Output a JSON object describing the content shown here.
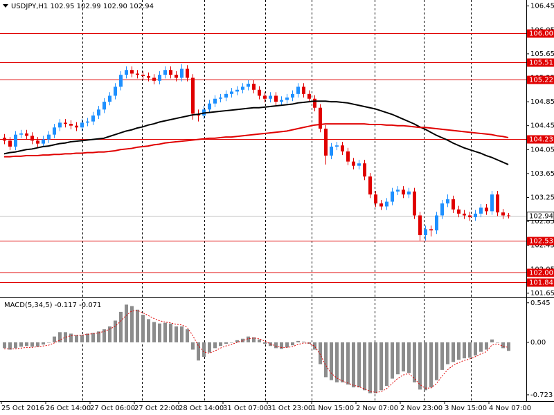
{
  "chart_data": {
    "type": "candlestick",
    "title": "USDJPY,H1  102.95 102.99 102.90 102.94",
    "categories": [
      "25 Oct 2016",
      null,
      null,
      null,
      null,
      null,
      null,
      null,
      "26 Oct 14:00",
      null,
      null,
      null,
      null,
      null,
      null,
      null,
      "27 Oct 06:00",
      null,
      null,
      null,
      null,
      null,
      null,
      null,
      "27 Oct 22:00",
      null,
      null,
      null,
      null,
      null,
      null,
      null,
      "28 Oct 14:00",
      null,
      null,
      null,
      null,
      null,
      null,
      null,
      "31 Oct 07:00",
      null,
      null,
      null,
      null,
      null,
      null,
      null,
      "31 Oct 23:00",
      null,
      null,
      null,
      null,
      null,
      null,
      null,
      "1 Nov 15:00",
      null,
      null,
      null,
      null,
      null,
      null,
      null,
      "2 Nov 07:00",
      null,
      null,
      null,
      null,
      null,
      null,
      null,
      "2 Nov 23:00",
      null,
      null,
      null,
      null,
      null,
      null,
      null,
      "3 Nov 15:00",
      null,
      null,
      null,
      null,
      null,
      null,
      null,
      "4 Nov 07:00",
      null,
      null,
      null
    ],
    "open": [
      104.25,
      104.2,
      104.1,
      104.3,
      104.32,
      104.28,
      104.2,
      104.15,
      104.22,
      104.3,
      104.42,
      104.5,
      104.48,
      104.45,
      104.42,
      104.5,
      104.52,
      104.62,
      104.72,
      104.85,
      104.95,
      105.1,
      105.3,
      105.38,
      105.32,
      105.3,
      105.28,
      105.25,
      105.2,
      105.3,
      105.38,
      105.3,
      105.25,
      105.4,
      105.25,
      104.65,
      104.62,
      104.72,
      104.82,
      104.9,
      104.92,
      104.98,
      105.02,
      105.05,
      105.1,
      105.15,
      105.05,
      104.95,
      104.9,
      104.95,
      104.85,
      104.88,
      104.92,
      104.98,
      105.1,
      104.98,
      104.9,
      104.75,
      104.4,
      103.95,
      104.1,
      104.12,
      104.02,
      103.85,
      103.78,
      103.82,
      103.6,
      103.3,
      103.15,
      103.1,
      103.18,
      103.35,
      103.38,
      103.3,
      103.35,
      102.95,
      102.62,
      102.72,
      102.7,
      102.95,
      103.15,
      103.22,
      103.05,
      102.98,
      102.95,
      102.92,
      102.98,
      103.08,
      103.02,
      103.3,
      103.0,
      102.95
    ],
    "high": [
      104.31,
      104.26,
      104.36,
      104.38,
      104.38,
      104.34,
      104.26,
      104.28,
      104.36,
      104.48,
      104.56,
      104.56,
      104.54,
      104.51,
      104.56,
      104.58,
      104.68,
      104.78,
      104.91,
      105.01,
      105.16,
      105.36,
      105.44,
      105.44,
      105.38,
      105.36,
      105.34,
      105.31,
      105.36,
      105.44,
      105.44,
      105.36,
      105.48,
      105.46,
      105.31,
      104.72,
      104.78,
      104.88,
      104.96,
      104.98,
      105.04,
      105.08,
      105.11,
      105.16,
      105.21,
      105.21,
      105.11,
      105.01,
      105.01,
      105.01,
      104.94,
      104.98,
      105.04,
      105.16,
      105.16,
      105.04,
      104.96,
      104.81,
      104.46,
      104.16,
      104.18,
      104.18,
      104.08,
      103.91,
      103.88,
      103.88,
      103.66,
      103.36,
      103.21,
      103.24,
      103.41,
      103.44,
      103.44,
      103.41,
      103.41,
      103.01,
      102.78,
      102.78,
      103.01,
      103.21,
      103.3,
      103.28,
      103.11,
      103.04,
      103.01,
      103.04,
      103.14,
      103.14,
      103.36,
      103.36,
      103.06,
      102.99
    ],
    "low": [
      104.14,
      104.04,
      104.04,
      104.24,
      104.22,
      104.14,
      104.09,
      104.09,
      104.16,
      104.24,
      104.36,
      104.42,
      104.39,
      104.36,
      104.36,
      104.44,
      104.46,
      104.56,
      104.66,
      104.79,
      104.89,
      105.04,
      105.24,
      105.26,
      105.24,
      105.22,
      105.19,
      105.14,
      105.14,
      105.24,
      105.24,
      105.19,
      105.19,
      105.19,
      104.55,
      104.52,
      104.56,
      104.66,
      104.76,
      104.84,
      104.86,
      104.92,
      104.96,
      104.99,
      105.04,
      104.99,
      104.89,
      104.84,
      104.84,
      104.79,
      104.79,
      104.82,
      104.86,
      104.92,
      104.92,
      104.84,
      104.69,
      104.34,
      103.8,
      103.89,
      104.04,
      103.96,
      103.79,
      103.72,
      103.72,
      103.54,
      103.24,
      103.09,
      103.04,
      103.04,
      103.12,
      103.29,
      103.24,
      103.24,
      102.89,
      102.53,
      102.53,
      102.6,
      102.64,
      102.89,
      103.09,
      102.99,
      102.92,
      102.89,
      102.86,
      102.86,
      102.92,
      102.96,
      102.96,
      102.94,
      102.89,
      102.9
    ],
    "close": [
      104.2,
      104.1,
      104.3,
      104.32,
      104.28,
      104.2,
      104.15,
      104.22,
      104.3,
      104.42,
      104.5,
      104.48,
      104.45,
      104.42,
      104.5,
      104.52,
      104.62,
      104.72,
      104.85,
      104.95,
      105.1,
      105.3,
      105.38,
      105.32,
      105.3,
      105.28,
      105.25,
      105.2,
      105.3,
      105.38,
      105.3,
      105.25,
      105.4,
      105.25,
      104.65,
      104.62,
      104.72,
      104.82,
      104.9,
      104.92,
      104.98,
      105.02,
      105.05,
      105.1,
      105.15,
      105.05,
      104.95,
      104.9,
      104.95,
      104.85,
      104.88,
      104.92,
      104.98,
      105.1,
      104.98,
      104.9,
      104.75,
      104.4,
      103.95,
      104.1,
      104.12,
      104.02,
      103.85,
      103.78,
      103.82,
      103.6,
      103.3,
      103.15,
      103.1,
      103.18,
      103.35,
      103.38,
      103.3,
      103.35,
      102.95,
      102.62,
      102.72,
      102.7,
      102.95,
      103.15,
      103.22,
      103.05,
      102.98,
      102.95,
      102.92,
      102.98,
      103.08,
      103.02,
      103.3,
      103.0,
      102.95,
      102.94
    ],
    "colors": {
      "up": "#1e90ff",
      "down": "#e00000"
    },
    "moving_averages": [
      {
        "color": "#000000",
        "values": [
          103.98,
          104.0,
          104.01,
          104.03,
          104.05,
          104.06,
          104.08,
          104.1,
          104.11,
          104.13,
          104.15,
          104.16,
          104.18,
          104.19,
          104.2,
          104.21,
          104.22,
          104.23,
          104.24,
          104.27,
          104.3,
          104.33,
          104.36,
          104.38,
          104.41,
          104.43,
          104.46,
          104.48,
          104.51,
          104.53,
          104.55,
          104.57,
          104.59,
          104.61,
          104.63,
          104.64,
          104.66,
          104.67,
          104.68,
          104.69,
          104.7,
          104.71,
          104.72,
          104.73,
          104.74,
          104.75,
          104.75,
          104.76,
          104.77,
          104.78,
          104.79,
          104.8,
          104.81,
          104.83,
          104.84,
          104.85,
          104.86,
          104.86,
          104.86,
          104.85,
          104.85,
          104.84,
          104.83,
          104.81,
          104.79,
          104.77,
          104.75,
          104.73,
          104.7,
          104.67,
          104.64,
          104.6,
          104.56,
          104.52,
          104.48,
          104.43,
          104.39,
          104.34,
          104.29,
          104.25,
          104.21,
          104.16,
          104.12,
          104.08,
          104.05,
          104.02,
          103.99,
          103.95,
          103.92,
          103.88,
          103.84,
          103.8
        ]
      },
      {
        "color": "#e00000",
        "values": [
          103.93,
          103.93,
          103.94,
          103.94,
          103.95,
          103.95,
          103.95,
          103.96,
          103.96,
          103.97,
          103.97,
          103.98,
          103.98,
          103.99,
          103.99,
          104.0,
          104.0,
          104.01,
          104.01,
          104.02,
          104.03,
          104.05,
          104.06,
          104.07,
          104.09,
          104.1,
          104.11,
          104.13,
          104.14,
          104.16,
          104.17,
          104.18,
          104.19,
          104.2,
          104.21,
          104.22,
          104.23,
          104.24,
          104.24,
          104.25,
          104.26,
          104.26,
          104.27,
          104.28,
          104.29,
          104.3,
          104.31,
          104.32,
          104.33,
          104.34,
          104.35,
          104.36,
          104.38,
          104.4,
          104.42,
          104.44,
          104.46,
          104.47,
          104.48,
          104.48,
          104.48,
          104.48,
          104.48,
          104.48,
          104.48,
          104.48,
          104.47,
          104.47,
          104.47,
          104.46,
          104.46,
          104.45,
          104.45,
          104.44,
          104.43,
          104.42,
          104.42,
          104.41,
          104.4,
          104.39,
          104.38,
          104.37,
          104.36,
          104.35,
          104.34,
          104.33,
          104.32,
          104.31,
          104.3,
          104.28,
          104.27,
          104.25
        ]
      }
    ],
    "levels": [
      {
        "value": 106,
        "label": "106.00"
      },
      105.51,
      105.22,
      104.23,
      102.53,
      {
        "value": 102,
        "label": "102.00"
      },
      101.84
    ],
    "level_color": "#e00000",
    "last_price": 102.94,
    "ylim": [
      101.58,
      106.55
    ],
    "yticks": [
      106.45,
      106.05,
      105.65,
      105.25,
      104.85,
      104.45,
      104.05,
      103.65,
      103.25,
      102.85,
      102.45,
      102.05,
      101.65
    ],
    "indicator": {
      "type": "bar",
      "title": "MACD(5,34,5) -0.117 -0.071",
      "color": "#8c8c8c",
      "values": [
        -0.08,
        -0.1,
        -0.08,
        -0.06,
        -0.05,
        -0.06,
        -0.06,
        -0.03,
        0.0,
        0.08,
        0.14,
        0.14,
        0.12,
        0.1,
        0.1,
        0.12,
        0.13,
        0.15,
        0.18,
        0.22,
        0.3,
        0.42,
        0.52,
        0.5,
        0.45,
        0.38,
        0.32,
        0.28,
        0.26,
        0.27,
        0.26,
        0.22,
        0.22,
        0.18,
        -0.1,
        -0.25,
        -0.2,
        -0.14,
        -0.08,
        -0.05,
        -0.02,
        0.0,
        0.03,
        0.05,
        0.08,
        0.07,
        0.04,
        -0.02,
        -0.05,
        -0.08,
        -0.09,
        -0.07,
        -0.04,
        0.02,
        0.01,
        -0.02,
        -0.1,
        -0.3,
        -0.48,
        -0.52,
        -0.55,
        -0.55,
        -0.58,
        -0.62,
        -0.62,
        -0.66,
        -0.7,
        -0.7,
        -0.66,
        -0.6,
        -0.5,
        -0.44,
        -0.4,
        -0.42,
        -0.55,
        -0.65,
        -0.66,
        -0.62,
        -0.52,
        -0.38,
        -0.3,
        -0.27,
        -0.24,
        -0.22,
        -0.21,
        -0.18,
        -0.13,
        -0.1,
        0.04,
        0.0,
        -0.08,
        -0.117
      ],
      "signal": {
        "color": "#e00000",
        "values": [
          -0.09,
          -0.09,
          -0.09,
          -0.08,
          -0.07,
          -0.07,
          -0.06,
          -0.05,
          -0.04,
          -0.01,
          0.03,
          0.07,
          0.09,
          0.1,
          0.1,
          0.11,
          0.12,
          0.13,
          0.15,
          0.18,
          0.22,
          0.29,
          0.37,
          0.43,
          0.44,
          0.41,
          0.37,
          0.33,
          0.3,
          0.28,
          0.27,
          0.25,
          0.24,
          0.21,
          0.1,
          -0.04,
          -0.13,
          -0.15,
          -0.12,
          -0.08,
          -0.05,
          -0.03,
          0.0,
          0.02,
          0.05,
          0.06,
          0.05,
          0.02,
          -0.02,
          -0.05,
          -0.07,
          -0.07,
          -0.06,
          -0.03,
          -0.01,
          -0.01,
          -0.05,
          -0.16,
          -0.31,
          -0.42,
          -0.49,
          -0.53,
          -0.56,
          -0.59,
          -0.61,
          -0.64,
          -0.67,
          -0.69,
          -0.68,
          -0.64,
          -0.57,
          -0.5,
          -0.45,
          -0.43,
          -0.49,
          -0.58,
          -0.63,
          -0.63,
          -0.57,
          -0.47,
          -0.38,
          -0.32,
          -0.28,
          -0.25,
          -0.23,
          -0.2,
          -0.16,
          -0.13,
          -0.04,
          -0.02,
          -0.05,
          -0.071
        ]
      },
      "ylim": [
        -0.81,
        0.6
      ],
      "yticks": [
        0.545,
        {
          "value": 0,
          "label": "0.00"
        },
        -0.723
      ]
    }
  }
}
